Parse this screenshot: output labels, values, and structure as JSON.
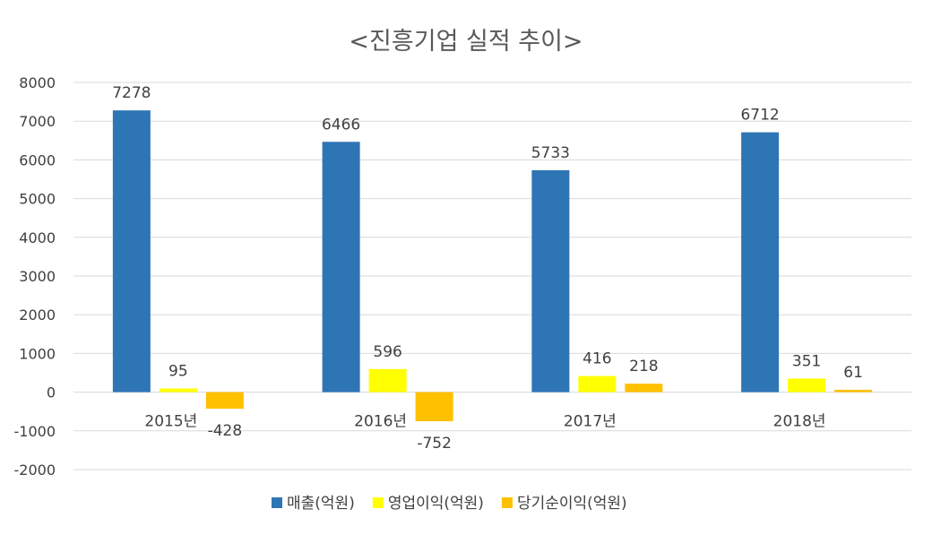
{
  "chart_data": {
    "type": "bar",
    "title": "<진흥기업 실적 추이>",
    "categories": [
      "2015년",
      "2016년",
      "2017년",
      "2018년"
    ],
    "series": [
      {
        "name": "매출(억원)",
        "color": "#2E75B6",
        "values": [
          7278,
          6466,
          5733,
          6712
        ],
        "labels": [
          "7278",
          "6466",
          "5733",
          "6712"
        ]
      },
      {
        "name": "영업이익(억원)",
        "color": "#FFFF00",
        "values": [
          95,
          596,
          416,
          351
        ],
        "labels": [
          "95",
          "596",
          "416",
          "351"
        ]
      },
      {
        "name": "당기순이익(억원)",
        "color": "#FFC000",
        "values": [
          -428,
          -752,
          218,
          61
        ],
        "labels": [
          "-428",
          "-752",
          "218",
          "61"
        ]
      }
    ],
    "ylim": [
      -2000,
      8000
    ],
    "yticks": [
      8000,
      7000,
      6000,
      5000,
      4000,
      3000,
      2000,
      1000,
      0,
      -1000,
      -2000
    ],
    "ytick_labels": [
      "8000",
      "7000",
      "6000",
      "5000",
      "4000",
      "3000",
      "2000",
      "1000",
      "0",
      "-1000",
      "-2000"
    ],
    "xlabel": "",
    "ylabel": "",
    "grid": true,
    "legend_position": "bottom"
  }
}
